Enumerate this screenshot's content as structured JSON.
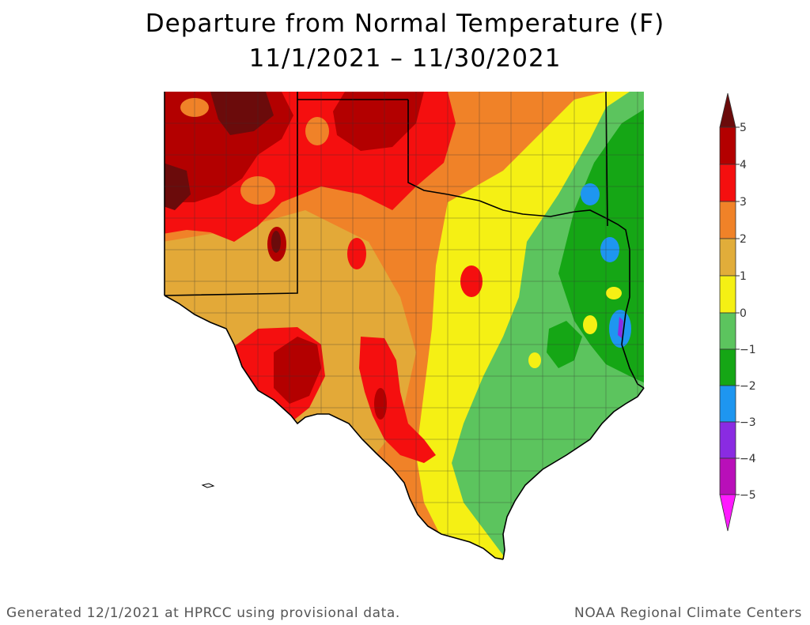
{
  "title": {
    "line1": "Departure from Normal Temperature (F)",
    "line2": "11/1/2021 – 11/30/2021"
  },
  "map": {
    "region": "Texas and adjacent areas",
    "units": "degrees F"
  },
  "legend": {
    "ticks": [
      "5",
      "4",
      "3",
      "2",
      "1",
      "0",
      "−1",
      "−2",
      "−3",
      "−4",
      "−5"
    ],
    "colors": [
      {
        "range": "> 5",
        "color": "#6b0b0b"
      },
      {
        "range": "4 to 5",
        "color": "#b30000"
      },
      {
        "range": "3 to 4",
        "color": "#f50f0f"
      },
      {
        "range": "2 to 3",
        "color": "#f08228"
      },
      {
        "range": "1 to 2",
        "color": "#e1ad3a"
      },
      {
        "range": "0 to 1",
        "color": "#f5f014"
      },
      {
        "range": "-1 to 0",
        "color": "#5cc45e"
      },
      {
        "range": "-2 to -1",
        "color": "#15a615"
      },
      {
        "range": "-3 to -2",
        "color": "#1e96f0"
      },
      {
        "range": "-4 to -3",
        "color": "#8a2be2"
      },
      {
        "range": "-5 to -4",
        "color": "#b90fb9"
      },
      {
        "range": "< -5",
        "color": "#ff1aff"
      }
    ]
  },
  "footer": {
    "left": "Generated 12/1/2021 at HPRCC using provisional data.",
    "right": "NOAA Regional Climate Centers"
  }
}
